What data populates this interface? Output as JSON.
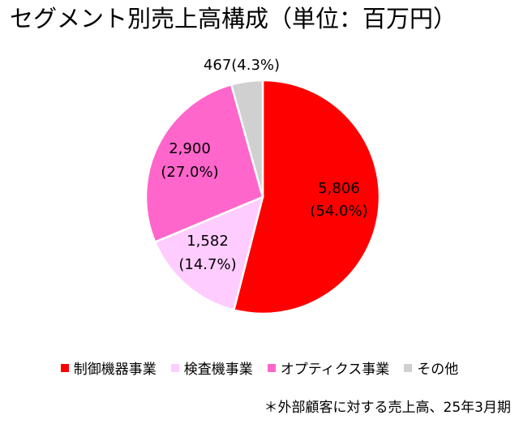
{
  "title": "セグメント別売上高構成（単位：百万円）",
  "footnote": "＊外部顧客に対する売上高、25年3月期",
  "chart_data": {
    "type": "pie",
    "title": "セグメント別売上高構成（単位：百万円）",
    "unit": "百万円",
    "slices": [
      {
        "name": "制御機器事業",
        "value": 5806,
        "label": "5,806",
        "percent_label": "(54.0%)",
        "color": "#ff0000"
      },
      {
        "name": "検査機事業",
        "value": 1582,
        "label": "1,582",
        "percent_label": "(14.7%)",
        "color": "#ffccff"
      },
      {
        "name": "オプティクス事業",
        "value": 2900,
        "label": "2,900",
        "percent_label": "(27.0%)",
        "color": "#ff66cc"
      },
      {
        "name": "その他",
        "value": 467,
        "label": "467(4.3%)",
        "percent_label": "",
        "color": "#d0d0d0"
      }
    ],
    "legend_position": "bottom"
  }
}
